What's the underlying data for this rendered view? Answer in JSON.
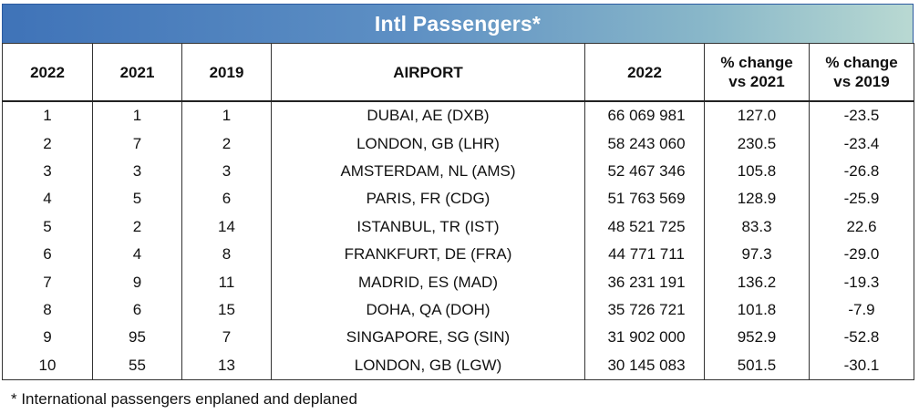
{
  "title": "Intl Passengers*",
  "headers": [
    "2022",
    "2021",
    "2019",
    "AIRPORT",
    "2022",
    "% change vs 2021",
    "% change vs 2019"
  ],
  "rows": [
    [
      "1",
      "1",
      "1",
      "DUBAI, AE (DXB)",
      "66 069 981",
      "127.0",
      "-23.5"
    ],
    [
      "2",
      "7",
      "2",
      "LONDON, GB (LHR)",
      "58 243 060",
      "230.5",
      "-23.4"
    ],
    [
      "3",
      "3",
      "3",
      "AMSTERDAM, NL (AMS)",
      "52 467 346",
      "105.8",
      "-26.8"
    ],
    [
      "4",
      "5",
      "6",
      "PARIS, FR (CDG)",
      "51 763 569",
      "128.9",
      "-25.9"
    ],
    [
      "5",
      "2",
      "14",
      "ISTANBUL, TR (IST)",
      "48 521 725",
      "83.3",
      "22.6"
    ],
    [
      "6",
      "4",
      "8",
      "FRANKFURT, DE (FRA)",
      "44 771 711",
      "97.3",
      "-29.0"
    ],
    [
      "7",
      "9",
      "11",
      "MADRID, ES (MAD)",
      "36 231 191",
      "136.2",
      "-19.3"
    ],
    [
      "8",
      "6",
      "15",
      "DOHA, QA (DOH)",
      "35 726 721",
      "101.8",
      "-7.9"
    ],
    [
      "9",
      "95",
      "7",
      "SINGAPORE, SG (SIN)",
      "31 902 000",
      "952.9",
      "-52.8"
    ],
    [
      "10",
      "55",
      "13",
      "LONDON, GB (LGW)",
      "30 145 083",
      "501.5",
      "-30.1"
    ]
  ],
  "footnote": "* International passengers enplaned and deplaned"
}
